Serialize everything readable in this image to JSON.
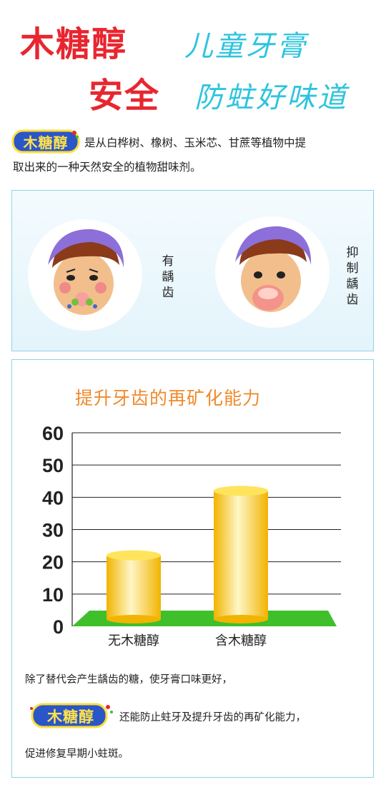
{
  "header": {
    "line1_red": "木糖醇",
    "line1_cyan": "儿童牙膏",
    "line2_red": "安全",
    "line2_cyan": "防蛀好味道"
  },
  "logo_text": "木糖醇",
  "intro": {
    "line1": "是从白桦树、橡树、玉米芯、甘蔗等植物中提",
    "line2": "取出来的一种天然安全的植物甜味剂。"
  },
  "compare": {
    "left_label": [
      "有",
      "龋",
      "齿"
    ],
    "right_label": [
      "抑",
      "制",
      "龋",
      "齿"
    ]
  },
  "chart_data": {
    "type": "bar",
    "title": "提升牙齿的再矿化能力",
    "categories": [
      "无木糖醇",
      "含木糖醇"
    ],
    "values": [
      22,
      42
    ],
    "ylim": [
      0,
      60
    ],
    "yticks": [
      "0",
      "10",
      "20",
      "30",
      "40",
      "50",
      "60"
    ],
    "xlabel": "",
    "ylabel": "",
    "grid": true,
    "colors": {
      "bar_light": "#fff6c8",
      "bar_dark": "#f1b400",
      "floor": "#3fbf2a"
    }
  },
  "footer": {
    "line1": "除了替代会产生龋齿的糖，使牙膏口味更好，",
    "line2": "还能防止蛀牙及提升牙齿的再矿化能力，",
    "line3": "促进修复早期小蛀斑。"
  },
  "colors": {
    "accent_red": "#e8262f",
    "accent_cyan": "#2ec4de",
    "border": "#8fd2ea",
    "title_orange": "#ef8a2c"
  }
}
